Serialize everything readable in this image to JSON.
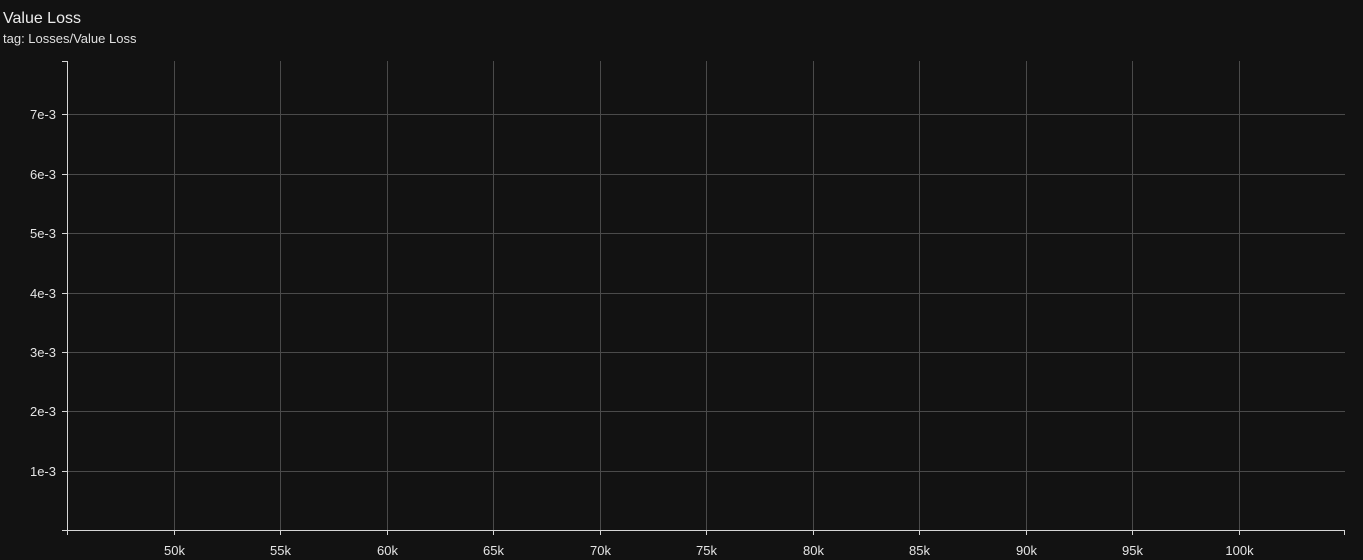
{
  "card": {
    "title": "Value Loss",
    "tag": "tag: Losses/Value Loss"
  },
  "chart_data": {
    "type": "line",
    "title": "Value Loss",
    "subtitle": "tag: Losses/Value Loss",
    "xlabel": "",
    "ylabel": "",
    "xlim": [
      45000,
      105000
    ],
    "ylim": [
      0,
      0.0079
    ],
    "grid": true,
    "x_ticks": [
      {
        "value": 50000,
        "label": "50k"
      },
      {
        "value": 55000,
        "label": "55k"
      },
      {
        "value": 60000,
        "label": "60k"
      },
      {
        "value": 65000,
        "label": "65k"
      },
      {
        "value": 70000,
        "label": "70k"
      },
      {
        "value": 75000,
        "label": "75k"
      },
      {
        "value": 80000,
        "label": "80k"
      },
      {
        "value": 85000,
        "label": "85k"
      },
      {
        "value": 90000,
        "label": "90k"
      },
      {
        "value": 95000,
        "label": "95k"
      },
      {
        "value": 100000,
        "label": "100k"
      }
    ],
    "y_ticks": [
      {
        "value": 0.001,
        "label": "1e-3"
      },
      {
        "value": 0.002,
        "label": "2e-3"
      },
      {
        "value": 0.003,
        "label": "3e-3"
      },
      {
        "value": 0.004,
        "label": "4e-3"
      },
      {
        "value": 0.005,
        "label": "5e-3"
      },
      {
        "value": 0.006,
        "label": "6e-3"
      },
      {
        "value": 0.007,
        "label": "7e-3"
      }
    ],
    "series": []
  }
}
